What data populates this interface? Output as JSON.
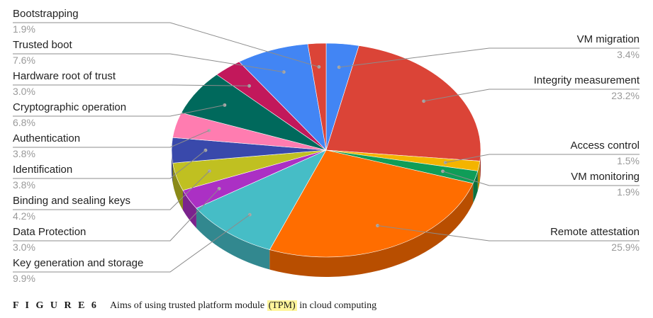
{
  "chart_data": {
    "type": "pie",
    "slices": [
      {
        "label": "VM migration",
        "value": 3.4,
        "color": "#4285f4"
      },
      {
        "label": "Integrity measurement",
        "value": 23.2,
        "color": "#db4437"
      },
      {
        "label": "Access control",
        "value": 1.5,
        "color": "#f4b400"
      },
      {
        "label": "VM monitoring",
        "value": 1.9,
        "color": "#0f9d58"
      },
      {
        "label": "Remote attestation",
        "value": 25.9,
        "color": "#ff6d00"
      },
      {
        "label": "Key generation and storage",
        "value": 9.9,
        "color": "#46bdc6"
      },
      {
        "label": "Data Protection",
        "value": 3.0,
        "color": "#ab30c4"
      },
      {
        "label": "Binding and sealing keys",
        "value": 4.2,
        "color": "#c0c021"
      },
      {
        "label": "Identification",
        "value": 3.8,
        "color": "#3949ab"
      },
      {
        "label": "Authentication",
        "value": 3.8,
        "color": "#ff7cb0"
      },
      {
        "label": "Cryptographic operation",
        "value": 6.8,
        "color": "#00695c"
      },
      {
        "label": "Hardware root of trust",
        "value": 3.0,
        "color": "#c2185b"
      },
      {
        "label": "Trusted boot",
        "value": 7.6,
        "color": "#4285f4"
      },
      {
        "label": "Bootstrapping",
        "value": 1.9,
        "color": "#db4437"
      }
    ],
    "value_suffix": "%",
    "style": "3d"
  },
  "caption": {
    "figure_label": "F I G U R E  6",
    "text_before": "Aims of using trusted platform module ",
    "highlight": "(TPM)",
    "text_after": " in cloud computing"
  }
}
